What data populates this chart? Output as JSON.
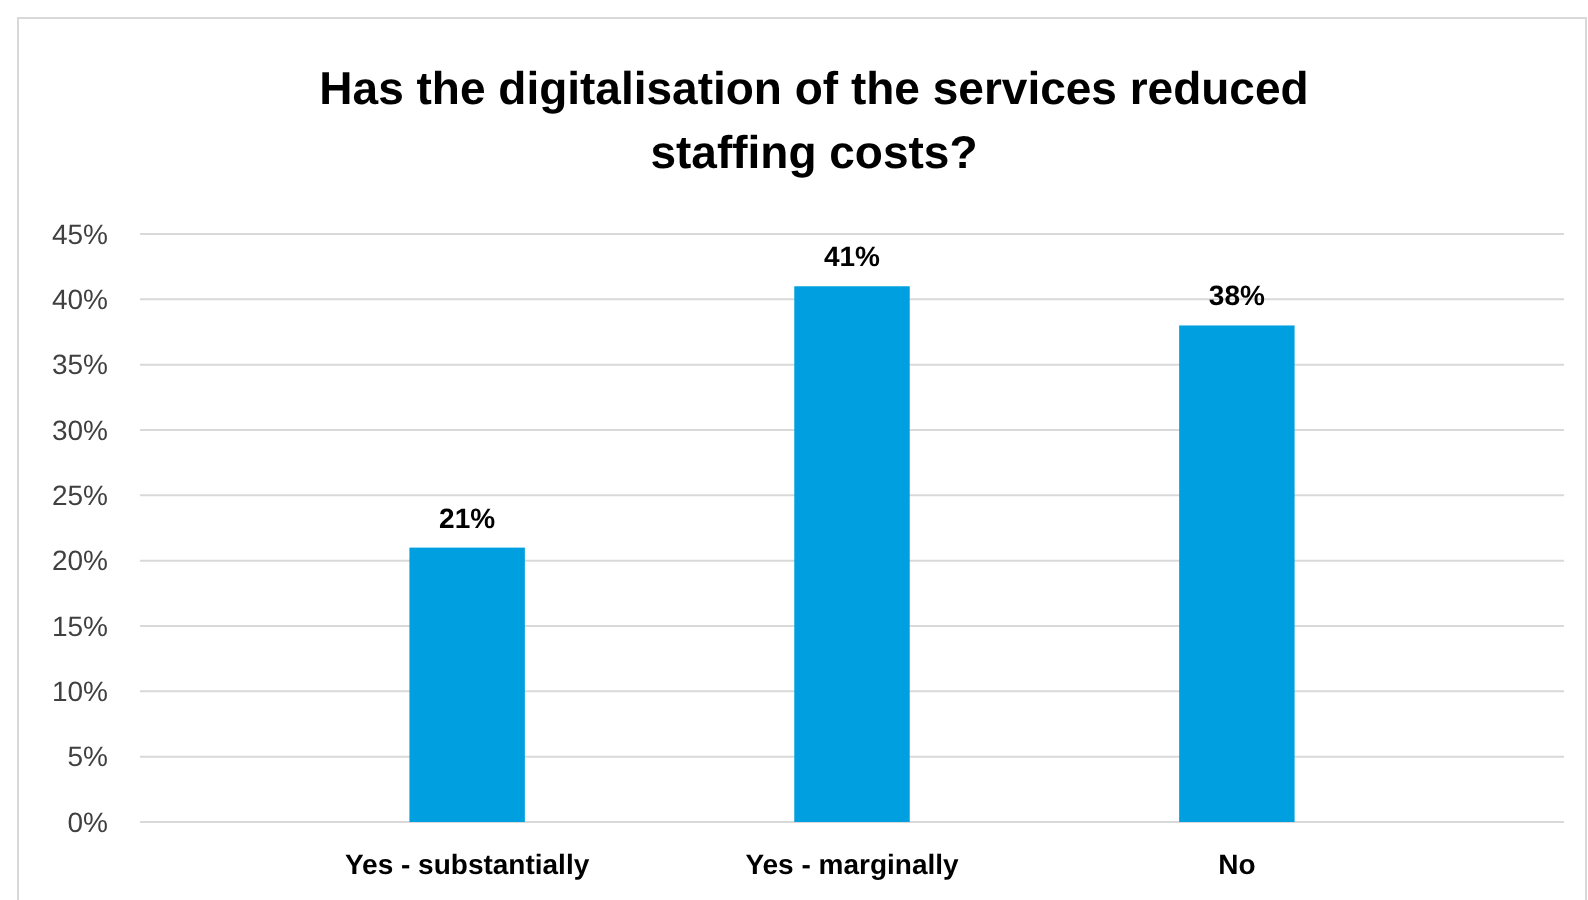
{
  "chart_data": {
    "type": "bar",
    "title": "Has the digitalisation of the services reduced staffing costs?",
    "categories": [
      "Yes - substantially",
      "Yes - marginally",
      "No"
    ],
    "values": [
      21,
      41,
      38
    ],
    "color": "#00a0e0",
    "value_labels": [
      "21%",
      "41%",
      "38%"
    ],
    "ylim": [
      0,
      45
    ],
    "yticks": [
      {
        "value": 0,
        "label": "0%"
      },
      {
        "value": 5,
        "label": "5%"
      },
      {
        "value": 10,
        "label": "10%"
      },
      {
        "value": 15,
        "label": "15%"
      },
      {
        "value": 20,
        "label": "20%"
      },
      {
        "value": 25,
        "label": "25%"
      },
      {
        "value": 30,
        "label": "30%"
      },
      {
        "value": 35,
        "label": "35%"
      },
      {
        "value": 40,
        "label": "40%"
      },
      {
        "value": 45,
        "label": "45%"
      }
    ],
    "grid": "y"
  }
}
